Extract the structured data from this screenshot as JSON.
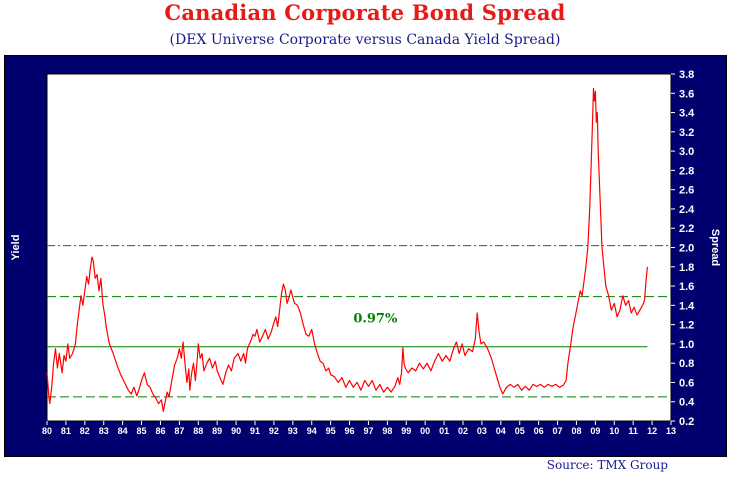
{
  "title": "Canadian Corporate Bond Spread",
  "subtitle": "(DEX Universe Corporate versus Canada Yield Spread)",
  "source": "Source: TMX Group",
  "colors": {
    "frame": "#00006e",
    "title": "#e41b17",
    "series": "#ff0000",
    "mean": "#008000"
  },
  "chart_data": {
    "type": "line",
    "title": "Canadian Corporate Bond Spread",
    "ylabel_left": "Yield",
    "ylabel_right": "Spread",
    "xlabel": "",
    "x_ticks": [
      "80",
      "81",
      "82",
      "83",
      "84",
      "85",
      "86",
      "87",
      "88",
      "89",
      "90",
      "91",
      "92",
      "93",
      "94",
      "95",
      "96",
      "97",
      "98",
      "99",
      "00",
      "01",
      "02",
      "03",
      "04",
      "05",
      "06",
      "07",
      "08",
      "09",
      "10",
      "11",
      "12",
      "13"
    ],
    "xlim": [
      1980,
      2013
    ],
    "ylim": [
      0.2,
      3.8
    ],
    "y_ticks": [
      "0.2",
      "0.4",
      "0.6",
      "0.8",
      "1.0",
      "1.2",
      "1.4",
      "1.6",
      "1.8",
      "2.0",
      "2.2",
      "2.4",
      "2.6",
      "2.8",
      "3.0",
      "3.2",
      "3.4",
      "3.6",
      "3.8"
    ],
    "grid": false,
    "annotation": "0.97%",
    "reference_lines": [
      {
        "name": "mean",
        "value": 0.97,
        "style": "solid",
        "color": "#008000"
      },
      {
        "name": "upper band",
        "value": 1.49,
        "style": "dashed",
        "color": "#008000"
      },
      {
        "name": "lower band",
        "value": 0.45,
        "style": "dashed",
        "color": "#008000"
      },
      {
        "name": "extreme",
        "value": 2.02,
        "style": "dashdot",
        "color": "#008000"
      }
    ],
    "series": [
      {
        "color": "#ff0000",
        "points": [
          [
            1980.0,
            0.7
          ],
          [
            1980.1,
            0.45
          ],
          [
            1980.15,
            0.38
          ],
          [
            1980.25,
            0.55
          ],
          [
            1980.35,
            0.8
          ],
          [
            1980.45,
            0.95
          ],
          [
            1980.55,
            0.75
          ],
          [
            1980.65,
            0.9
          ],
          [
            1980.8,
            0.7
          ],
          [
            1980.9,
            0.88
          ],
          [
            1981.0,
            0.82
          ],
          [
            1981.1,
            1.0
          ],
          [
            1981.2,
            0.85
          ],
          [
            1981.35,
            0.9
          ],
          [
            1981.5,
            1.0
          ],
          [
            1981.6,
            1.2
          ],
          [
            1981.7,
            1.35
          ],
          [
            1981.8,
            1.5
          ],
          [
            1981.9,
            1.4
          ],
          [
            1982.0,
            1.55
          ],
          [
            1982.1,
            1.7
          ],
          [
            1982.2,
            1.62
          ],
          [
            1982.3,
            1.8
          ],
          [
            1982.38,
            1.9
          ],
          [
            1982.45,
            1.86
          ],
          [
            1982.55,
            1.68
          ],
          [
            1982.65,
            1.72
          ],
          [
            1982.75,
            1.55
          ],
          [
            1982.85,
            1.68
          ],
          [
            1982.95,
            1.42
          ],
          [
            1983.05,
            1.3
          ],
          [
            1983.15,
            1.15
          ],
          [
            1983.3,
            1.0
          ],
          [
            1983.5,
            0.9
          ],
          [
            1983.7,
            0.78
          ],
          [
            1983.9,
            0.68
          ],
          [
            1984.1,
            0.6
          ],
          [
            1984.3,
            0.52
          ],
          [
            1984.45,
            0.48
          ],
          [
            1984.6,
            0.55
          ],
          [
            1984.75,
            0.46
          ],
          [
            1984.9,
            0.55
          ],
          [
            1985.0,
            0.62
          ],
          [
            1985.15,
            0.7
          ],
          [
            1985.3,
            0.58
          ],
          [
            1985.45,
            0.55
          ],
          [
            1985.6,
            0.48
          ],
          [
            1985.75,
            0.44
          ],
          [
            1985.9,
            0.38
          ],
          [
            1986.05,
            0.42
          ],
          [
            1986.15,
            0.3
          ],
          [
            1986.25,
            0.4
          ],
          [
            1986.35,
            0.5
          ],
          [
            1986.45,
            0.45
          ],
          [
            1986.6,
            0.62
          ],
          [
            1986.75,
            0.78
          ],
          [
            1986.9,
            0.86
          ],
          [
            1987.0,
            0.95
          ],
          [
            1987.1,
            0.85
          ],
          [
            1987.2,
            1.02
          ],
          [
            1987.3,
            0.8
          ],
          [
            1987.4,
            0.6
          ],
          [
            1987.5,
            0.74
          ],
          [
            1987.55,
            0.52
          ],
          [
            1987.65,
            0.7
          ],
          [
            1987.75,
            0.8
          ],
          [
            1987.85,
            0.62
          ],
          [
            1987.95,
            0.85
          ],
          [
            1988.0,
            1.0
          ],
          [
            1988.1,
            0.85
          ],
          [
            1988.2,
            0.9
          ],
          [
            1988.3,
            0.72
          ],
          [
            1988.45,
            0.8
          ],
          [
            1988.6,
            0.85
          ],
          [
            1988.75,
            0.75
          ],
          [
            1988.9,
            0.82
          ],
          [
            1989.0,
            0.72
          ],
          [
            1989.15,
            0.65
          ],
          [
            1989.3,
            0.58
          ],
          [
            1989.45,
            0.7
          ],
          [
            1989.6,
            0.78
          ],
          [
            1989.75,
            0.72
          ],
          [
            1989.9,
            0.85
          ],
          [
            1990.1,
            0.9
          ],
          [
            1990.25,
            0.82
          ],
          [
            1990.4,
            0.9
          ],
          [
            1990.5,
            0.8
          ],
          [
            1990.6,
            0.95
          ],
          [
            1990.75,
            1.02
          ],
          [
            1990.9,
            1.1
          ],
          [
            1991.0,
            1.08
          ],
          [
            1991.1,
            1.15
          ],
          [
            1991.25,
            1.02
          ],
          [
            1991.4,
            1.08
          ],
          [
            1991.55,
            1.15
          ],
          [
            1991.7,
            1.05
          ],
          [
            1991.85,
            1.12
          ],
          [
            1992.0,
            1.22
          ],
          [
            1992.1,
            1.28
          ],
          [
            1992.2,
            1.18
          ],
          [
            1992.3,
            1.35
          ],
          [
            1992.4,
            1.52
          ],
          [
            1992.5,
            1.62
          ],
          [
            1992.6,
            1.56
          ],
          [
            1992.7,
            1.42
          ],
          [
            1992.8,
            1.48
          ],
          [
            1992.9,
            1.56
          ],
          [
            1993.0,
            1.48
          ],
          [
            1993.1,
            1.42
          ],
          [
            1993.25,
            1.4
          ],
          [
            1993.4,
            1.32
          ],
          [
            1993.55,
            1.2
          ],
          [
            1993.7,
            1.1
          ],
          [
            1993.85,
            1.08
          ],
          [
            1994.0,
            1.15
          ],
          [
            1994.15,
            1.0
          ],
          [
            1994.3,
            0.9
          ],
          [
            1994.45,
            0.82
          ],
          [
            1994.6,
            0.8
          ],
          [
            1994.75,
            0.72
          ],
          [
            1994.9,
            0.75
          ],
          [
            1995.0,
            0.68
          ],
          [
            1995.2,
            0.66
          ],
          [
            1995.4,
            0.6
          ],
          [
            1995.6,
            0.65
          ],
          [
            1995.8,
            0.55
          ],
          [
            1996.0,
            0.62
          ],
          [
            1996.2,
            0.55
          ],
          [
            1996.4,
            0.6
          ],
          [
            1996.6,
            0.52
          ],
          [
            1996.8,
            0.62
          ],
          [
            1997.0,
            0.56
          ],
          [
            1997.2,
            0.62
          ],
          [
            1997.4,
            0.52
          ],
          [
            1997.6,
            0.58
          ],
          [
            1997.8,
            0.5
          ],
          [
            1998.0,
            0.55
          ],
          [
            1998.2,
            0.5
          ],
          [
            1998.4,
            0.56
          ],
          [
            1998.55,
            0.65
          ],
          [
            1998.65,
            0.58
          ],
          [
            1998.75,
            0.7
          ],
          [
            1998.82,
            0.96
          ],
          [
            1998.88,
            0.8
          ],
          [
            1998.95,
            0.75
          ],
          [
            1999.1,
            0.7
          ],
          [
            1999.3,
            0.75
          ],
          [
            1999.5,
            0.72
          ],
          [
            1999.7,
            0.8
          ],
          [
            1999.9,
            0.74
          ],
          [
            2000.1,
            0.8
          ],
          [
            2000.3,
            0.72
          ],
          [
            2000.5,
            0.82
          ],
          [
            2000.7,
            0.9
          ],
          [
            2000.9,
            0.82
          ],
          [
            2001.1,
            0.88
          ],
          [
            2001.3,
            0.82
          ],
          [
            2001.5,
            0.95
          ],
          [
            2001.65,
            1.02
          ],
          [
            2001.8,
            0.9
          ],
          [
            2001.95,
            1.0
          ],
          [
            2002.1,
            0.88
          ],
          [
            2002.3,
            0.95
          ],
          [
            2002.5,
            0.92
          ],
          [
            2002.65,
            1.05
          ],
          [
            2002.75,
            1.32
          ],
          [
            2002.85,
            1.12
          ],
          [
            2002.95,
            1.0
          ],
          [
            2003.1,
            1.02
          ],
          [
            2003.3,
            0.95
          ],
          [
            2003.5,
            0.85
          ],
          [
            2003.65,
            0.75
          ],
          [
            2003.8,
            0.65
          ],
          [
            2003.95,
            0.55
          ],
          [
            2004.1,
            0.48
          ],
          [
            2004.3,
            0.55
          ],
          [
            2004.5,
            0.58
          ],
          [
            2004.7,
            0.55
          ],
          [
            2004.9,
            0.58
          ],
          [
            2005.1,
            0.52
          ],
          [
            2005.3,
            0.56
          ],
          [
            2005.5,
            0.52
          ],
          [
            2005.7,
            0.58
          ],
          [
            2005.9,
            0.56
          ],
          [
            2006.1,
            0.58
          ],
          [
            2006.3,
            0.55
          ],
          [
            2006.5,
            0.58
          ],
          [
            2006.7,
            0.56
          ],
          [
            2006.9,
            0.58
          ],
          [
            2007.1,
            0.55
          ],
          [
            2007.3,
            0.57
          ],
          [
            2007.45,
            0.62
          ],
          [
            2007.55,
            0.8
          ],
          [
            2007.7,
            1.0
          ],
          [
            2007.8,
            1.15
          ],
          [
            2007.9,
            1.25
          ],
          [
            2008.0,
            1.35
          ],
          [
            2008.1,
            1.45
          ],
          [
            2008.2,
            1.55
          ],
          [
            2008.3,
            1.5
          ],
          [
            2008.4,
            1.65
          ],
          [
            2008.5,
            1.8
          ],
          [
            2008.6,
            2.0
          ],
          [
            2008.7,
            2.4
          ],
          [
            2008.8,
            3.0
          ],
          [
            2008.85,
            3.3
          ],
          [
            2008.9,
            3.65
          ],
          [
            2008.95,
            3.52
          ],
          [
            2009.0,
            3.62
          ],
          [
            2009.05,
            3.3
          ],
          [
            2009.1,
            3.4
          ],
          [
            2009.15,
            3.0
          ],
          [
            2009.25,
            2.5
          ],
          [
            2009.35,
            2.0
          ],
          [
            2009.45,
            1.8
          ],
          [
            2009.55,
            1.6
          ],
          [
            2009.7,
            1.5
          ],
          [
            2009.85,
            1.35
          ],
          [
            2010.0,
            1.42
          ],
          [
            2010.15,
            1.28
          ],
          [
            2010.3,
            1.35
          ],
          [
            2010.45,
            1.5
          ],
          [
            2010.6,
            1.4
          ],
          [
            2010.75,
            1.45
          ],
          [
            2010.9,
            1.32
          ],
          [
            2011.05,
            1.38
          ],
          [
            2011.2,
            1.3
          ],
          [
            2011.35,
            1.35
          ],
          [
            2011.5,
            1.4
          ],
          [
            2011.6,
            1.45
          ],
          [
            2011.68,
            1.65
          ],
          [
            2011.75,
            1.8
          ]
        ]
      }
    ]
  }
}
